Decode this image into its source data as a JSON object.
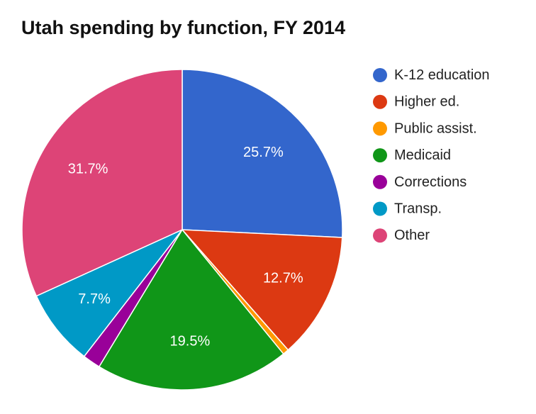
{
  "chart_data": {
    "type": "pie",
    "title": "Utah spending by function, FY 2014",
    "categories": [
      "K-12 education",
      "Higher ed.",
      "Public assist.",
      "Medicaid",
      "Corrections",
      "Transp.",
      "Other"
    ],
    "values": [
      25.7,
      12.7,
      0.6,
      19.5,
      1.8,
      7.7,
      31.7
    ],
    "value_labels": [
      "25.7%",
      "12.7%",
      "",
      "19.5%",
      "",
      "7.7%",
      "31.7%"
    ],
    "colors": [
      "#3366cc",
      "#dc3912",
      "#ff9900",
      "#109618",
      "#990099",
      "#0099c6",
      "#dd4477"
    ],
    "legend_position": "right"
  }
}
